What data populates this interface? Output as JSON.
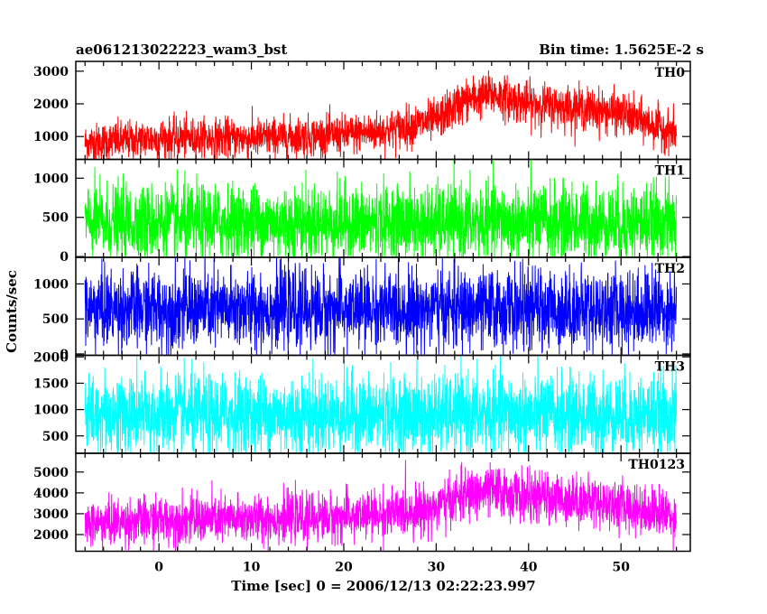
{
  "chart_data": {
    "type": "line",
    "title_left": "ae061213022223_wam3_bst",
    "title_right": "Bin time: 1.5625E-2 s",
    "xlabel": "Time [sec] 0 = 2006/12/13 02:22:23.997",
    "ylabel": "Counts/sec",
    "xlim": [
      -9,
      57.5
    ],
    "x_range_data": [
      -8,
      56
    ],
    "x_ticks": [
      0,
      10,
      20,
      30,
      40,
      50
    ],
    "panels": [
      {
        "name": "TH0",
        "color": "#ff0000",
        "ylim": [
          300,
          3300
        ],
        "y_ticks": [
          1000,
          2000,
          3000
        ],
        "envelope_x": [
          -8,
          0,
          10,
          20,
          25,
          30,
          33,
          36,
          40,
          45,
          50,
          56
        ],
        "envelope_mean": [
          800,
          950,
          950,
          1050,
          1200,
          1500,
          2100,
          2300,
          2000,
          1900,
          1700,
          1100
        ],
        "noise": 330
      },
      {
        "name": "TH1",
        "color": "#00ff00",
        "ylim": [
          -10,
          1240
        ],
        "y_ticks": [
          0,
          500,
          1000
        ],
        "envelope_x": [
          -8,
          56
        ],
        "envelope_mean": [
          430,
          430
        ],
        "noise": 240
      },
      {
        "name": "TH2",
        "color": "#0000ff",
        "ylim": [
          -20,
          1380
        ],
        "y_ticks": [
          0,
          500,
          1000
        ],
        "envelope_x": [
          -8,
          56
        ],
        "envelope_mean": [
          640,
          640
        ],
        "noise": 280
      },
      {
        "name": "TH3",
        "color": "#00ffff",
        "ylim": [
          170,
          2030
        ],
        "y_ticks": [
          500,
          1000,
          1500,
          2000
        ],
        "envelope_x": [
          -8,
          56
        ],
        "envelope_mean": [
          900,
          900
        ],
        "noise": 380
      },
      {
        "name": "TH0123",
        "color": "#ff00ff",
        "ylim": [
          1200,
          5900
        ],
        "y_ticks": [
          2000,
          3000,
          4000,
          5000
        ],
        "envelope_x": [
          -8,
          0,
          10,
          20,
          25,
          30,
          33,
          36,
          40,
          45,
          50,
          56
        ],
        "envelope_mean": [
          2500,
          2700,
          2750,
          2850,
          3000,
          3300,
          3900,
          4100,
          3800,
          3700,
          3400,
          2900
        ],
        "noise": 600
      }
    ]
  }
}
